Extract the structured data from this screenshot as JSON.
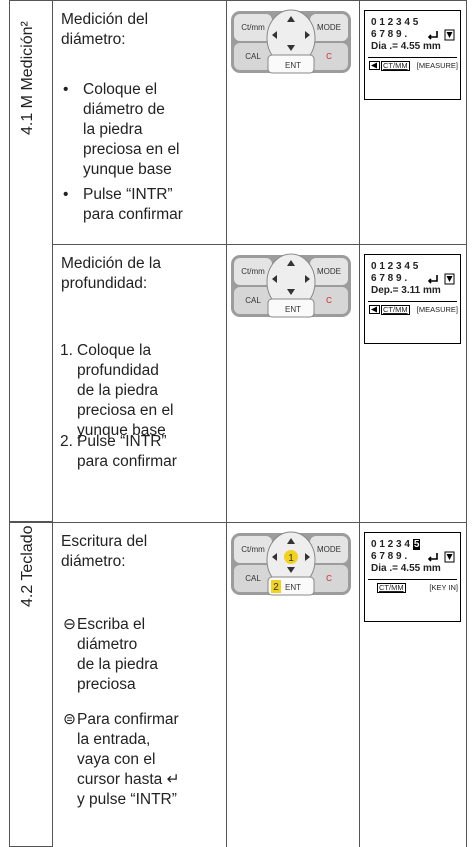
{
  "sections": [
    {
      "label": "4.1 M Medición²",
      "rows": [
        {
          "title": [
            "Medición del",
            "diámetro:"
          ],
          "items": [
            {
              "marker": "•",
              "lines": [
                "Coloque el",
                "diámetro de",
                "la piedra",
                "preciosa en el",
                "yunque base"
              ]
            },
            {
              "marker": "•",
              "lines": [
                "Pulse “INTR”",
                "para confirmar"
              ]
            }
          ],
          "keypad": {
            "keys": [
              "Ct/mm",
              "MODE",
              "CAL",
              "ENT",
              "C"
            ]
          },
          "screen": {
            "line1": "0 1 2 3 4 5",
            "line2": "6 7 8 9 .",
            "line3": "Dia .= 4.55 mm",
            "mode": "CT/MM",
            "status": "[MEASURE]"
          }
        },
        {
          "title": [
            "Medición de la",
            "profundidad:"
          ],
          "items": [
            {
              "marker": "1.",
              "lines": [
                "Coloque la",
                "profundidad",
                "de la piedra",
                "preciosa en el",
                "yunque base"
              ]
            },
            {
              "marker": "2.",
              "lines": [
                "Pulse “INTR”",
                "para confirmar"
              ]
            }
          ],
          "keypad": {
            "keys": [
              "Ct/mm",
              "MODE",
              "CAL",
              "ENT",
              "C"
            ]
          },
          "screen": {
            "line1": "0 1 2 3 4 5",
            "line2": "6 7 8 9 .",
            "line3": "Dep.= 3.11 mm",
            "mode": "CT/MM",
            "status": "[MEASURE]"
          }
        }
      ]
    },
    {
      "label": "4.2 Teclado",
      "rows": [
        {
          "title": [
            "Escritura del",
            "diámetro:"
          ],
          "items": [
            {
              "marker": "⊖",
              "lines": [
                "Escriba el",
                "diámetro",
                "de la piedra",
                "preciosa"
              ]
            },
            {
              "marker": "⊜",
              "lines": [
                "Para confirmar",
                "la entrada,",
                "vaya con el",
                "cursor hasta ↵",
                "y pulse “INTR”"
              ]
            }
          ],
          "keypad": {
            "keys": [
              "Ct/mm",
              "MODE",
              "CAL",
              "ENT",
              "C"
            ],
            "steps": [
              "1",
              "2"
            ]
          },
          "screen": {
            "line1": "0 1 2 3 4",
            "cursor": "5",
            "line2": "6 7 8 9 .",
            "line3": "Dia .= 4.55 mm",
            "mode": "CT/MM",
            "status": "[KEY IN]"
          }
        }
      ]
    }
  ]
}
